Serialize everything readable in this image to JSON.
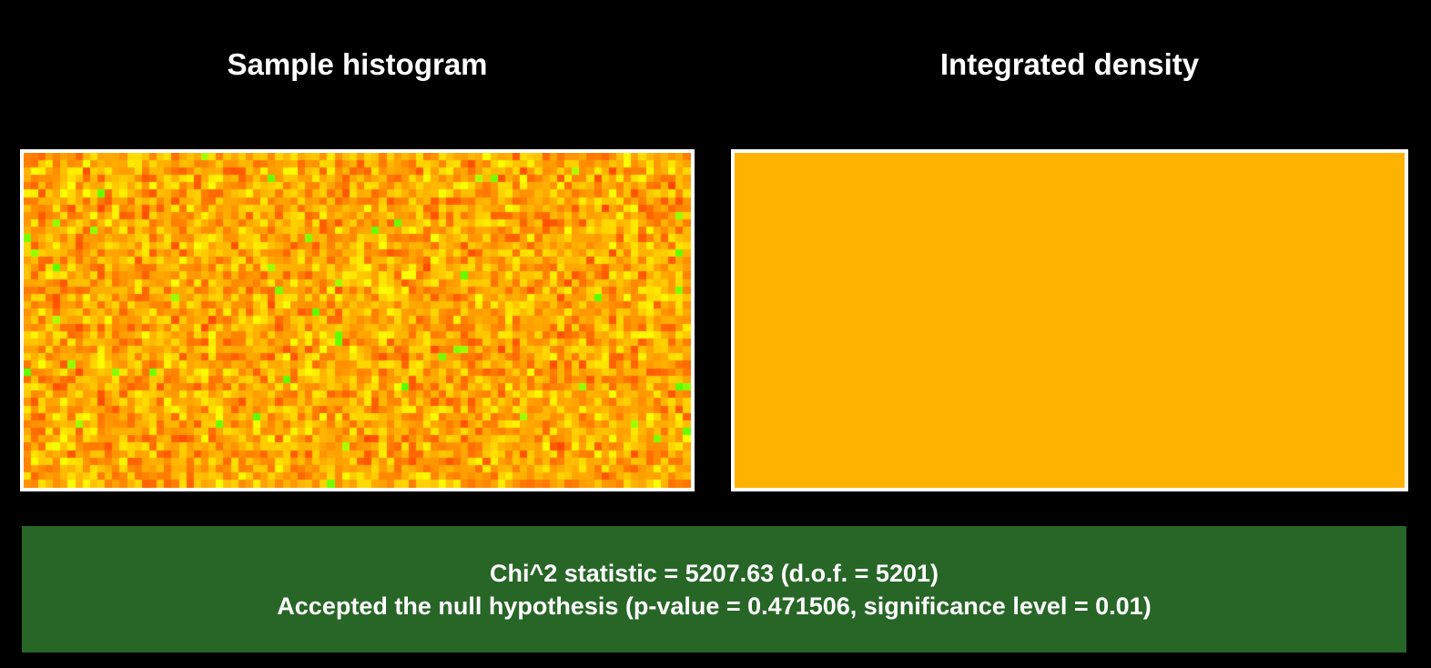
{
  "page": {
    "background_color": "#000000"
  },
  "panels": {
    "left": {
      "title": "Sample histogram"
    },
    "right": {
      "title": "Integrated density",
      "fill_color": "#FFB300"
    }
  },
  "banner": {
    "background_color": "#276627",
    "text_color": "#FFFFFF",
    "line1": "Chi^2 statistic = 5207.63 (d.o.f. = 5201)",
    "line2": "Accepted the null hypothesis (p-value = 0.471506, significance level = 0.01)"
  },
  "statistics": {
    "chi2_statistic": 5207.63,
    "degrees_of_freedom": 5201,
    "p_value": 0.471506,
    "significance_level": 0.01,
    "result": "Accepted the null hypothesis"
  },
  "chart_data": [
    {
      "type": "heatmap",
      "title": "Sample histogram",
      "grid": {
        "cols": 90,
        "rows": 45
      },
      "description": "2D histogram of random samples; bin counts fluctuate around the expected value, rendered on a yellow-orange-red heat scale with rare low-count green bins",
      "palette_hint": [
        "#FF0000",
        "#FF5000",
        "#FF8000",
        "#FFA500",
        "#FFC800",
        "#FFEE00",
        "#8CF000"
      ],
      "color_model": {
        "hue_min": 16,
        "hue_span": 47,
        "green_probability": 0.012,
        "green_hue_min": 78,
        "green_hue_span": 22,
        "seed": 1234567
      }
    },
    {
      "type": "heatmap",
      "title": "Integrated density",
      "grid": {
        "cols": 1,
        "rows": 1
      },
      "uniform_color": "#FFB300",
      "description": "Integrated (expected) density is uniform over the domain, shown as a constant orange field"
    }
  ]
}
